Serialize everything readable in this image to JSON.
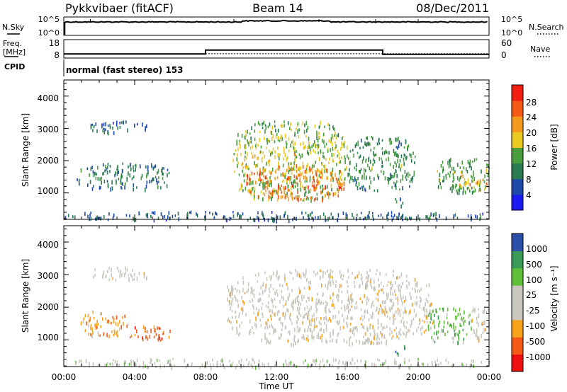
{
  "header": {
    "station": "Pykkvibaer (fitACF)",
    "beam": "Beam 14",
    "date": "08/Dec/2011"
  },
  "nsky_panel": {
    "left_label": "N.Sky",
    "right_label": "N.Search",
    "left_ticks": [
      "10^5",
      "10^0"
    ],
    "right_ticks": [
      "10^5",
      "10^0"
    ]
  },
  "freq_panel": {
    "label_line1": "Freq.",
    "label_line2": "[MHz]",
    "left_ticks": [
      "18",
      "8"
    ],
    "right_ticks": [
      "60",
      "0"
    ],
    "right_label": "Nave",
    "freq_steps": [
      {
        "start": 0,
        "end": 8,
        "value": 10.2
      },
      {
        "start": 8,
        "end": 18,
        "value": 12.3
      },
      {
        "start": 18,
        "end": 24,
        "value": 10.0
      }
    ],
    "nave_level": 14
  },
  "cpid": {
    "label": "CPID",
    "text": "normal (fast stereo) 153"
  },
  "colors": {
    "power_scale": [
      "#1a1af0",
      "#1f49a8",
      "#2c7a50",
      "#4a9e3e",
      "#e8c821",
      "#f59a1c",
      "#f25a16",
      "#f01f10"
    ],
    "velocity_scale": [
      "#ee1010",
      "#f35a16",
      "#f6a21a",
      "#c8c6bd",
      "#c8c6bd",
      "#60c03a",
      "#3a9a57",
      "#2b4ea8"
    ]
  },
  "chart_data": [
    {
      "type": "heatmap",
      "title": "",
      "xlabel": "Time UT",
      "ylabel": "Slant Range [km]",
      "xlim": [
        0,
        24
      ],
      "ylim": [
        180,
        4500
      ],
      "x_ticks": [
        "00:00",
        "04:00",
        "08:00",
        "12:00",
        "16:00",
        "20:00",
        "00:00"
      ],
      "y_ticks": [
        1000,
        2000,
        3000,
        4000
      ],
      "y_tick_labels": [
        "1000",
        "2000",
        "3000",
        "4000"
      ],
      "colorbar": {
        "label": "Power [dB]",
        "range": [
          0,
          32
        ],
        "ticks": [
          4,
          8,
          12,
          16,
          20,
          24,
          28
        ],
        "tick_labels": [
          "4",
          "8",
          "12",
          "16",
          "20",
          "24",
          "28"
        ]
      },
      "regions": [
        {
          "t0": 1.4,
          "t1": 4.7,
          "r0": 2900,
          "r1": 3250,
          "level": 8
        },
        {
          "t0": 0.7,
          "t1": 6.1,
          "r0": 1150,
          "r1": 1950,
          "level": 11
        },
        {
          "t0": 9.5,
          "t1": 16.0,
          "r0": 800,
          "r1": 3250,
          "level": 17
        },
        {
          "t0": 10.3,
          "t1": 15.8,
          "r0": 800,
          "r1": 1900,
          "level": 26
        },
        {
          "t0": 16.0,
          "t1": 19.8,
          "r0": 1100,
          "r1": 2800,
          "level": 13
        },
        {
          "t0": 18.6,
          "t1": 19.2,
          "r0": 600,
          "r1": 900,
          "level": 12
        },
        {
          "t0": 21.0,
          "t1": 24.0,
          "r0": 1000,
          "r1": 2100,
          "level": 14
        },
        {
          "t0": 22.2,
          "t1": 24.0,
          "r0": 1100,
          "r1": 1600,
          "level": 22
        },
        {
          "t0": 0.0,
          "t1": 24.0,
          "r0": 180,
          "r1": 450,
          "level": 9
        }
      ]
    },
    {
      "type": "heatmap",
      "title": "",
      "xlabel": "Time UT",
      "ylabel": "Slant Range [km]",
      "xlim": [
        0,
        24
      ],
      "ylim": [
        180,
        4500
      ],
      "x_ticks": [
        "00:00",
        "04:00",
        "08:00",
        "12:00",
        "16:00",
        "20:00",
        "00:00"
      ],
      "y_ticks": [
        1000,
        2000,
        3000,
        4000
      ],
      "y_tick_labels": [
        "1000",
        "2000",
        "3000",
        "4000"
      ],
      "colorbar": {
        "label": "Velocity [m s⁻¹]",
        "tick_labels": [
          "1000",
          "500",
          "100",
          "25",
          "-25",
          "-100",
          "-500",
          "-1000"
        ]
      },
      "regions": [
        {
          "t0": 1.6,
          "t1": 4.7,
          "r0": 2850,
          "r1": 3250,
          "cls": 3
        },
        {
          "t0": 0.9,
          "t1": 3.6,
          "r0": 1150,
          "r1": 1900,
          "cls": 2
        },
        {
          "t0": 3.6,
          "t1": 6.0,
          "r0": 1000,
          "r1": 1450,
          "cls": 1
        },
        {
          "t0": 9.2,
          "t1": 20.8,
          "r0": 900,
          "r1": 3200,
          "cls": 3
        },
        {
          "t0": 20.5,
          "t1": 23.0,
          "r0": 950,
          "r1": 2000,
          "cls": 5
        },
        {
          "t0": 23.0,
          "t1": 24.0,
          "r0": 1000,
          "r1": 2100,
          "cls": 3
        },
        {
          "t0": 18.6,
          "t1": 19.3,
          "r0": 580,
          "r1": 850,
          "cls": 6
        },
        {
          "t0": 0.0,
          "t1": 24.0,
          "r0": 180,
          "r1": 450,
          "cls": 4
        }
      ]
    }
  ]
}
